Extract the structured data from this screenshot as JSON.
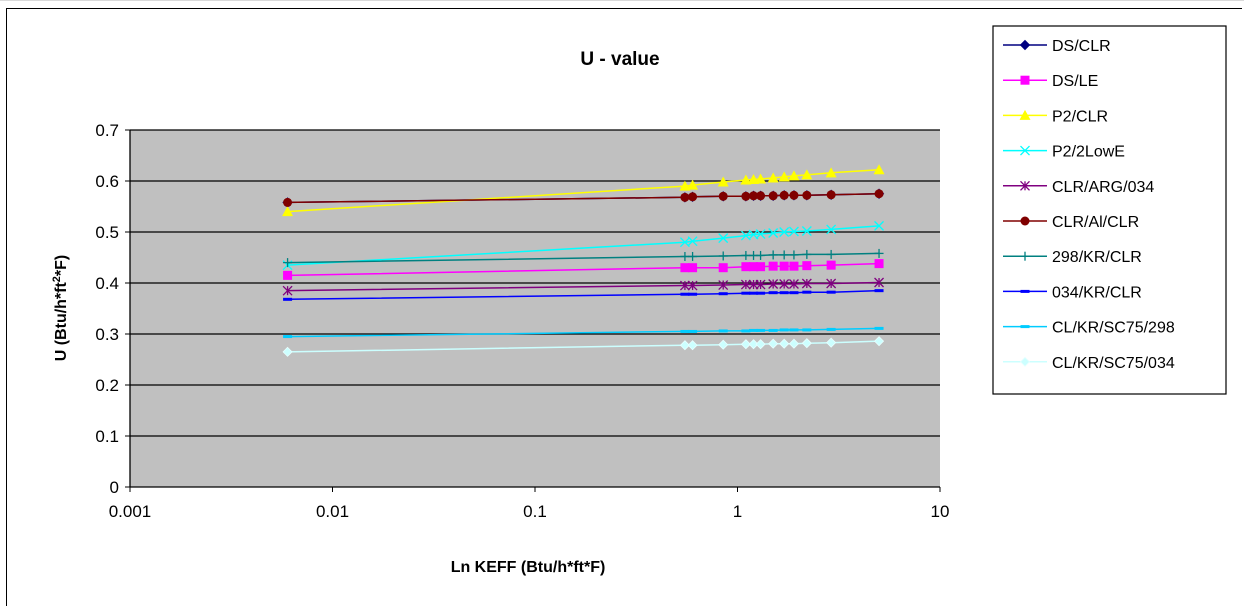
{
  "chart_data": {
    "type": "line",
    "title": "U - value",
    "xlabel": "Ln KEFF (Btu/h*ft*F)",
    "ylabel": "U (Btu/h*ft",
    "ylabel_sup": "2",
    "ylabel_tail": "*F)",
    "xscale": "log",
    "xlim": [
      0.001,
      10
    ],
    "ylim": [
      0,
      0.7
    ],
    "x_tick_labels": [
      "0.001",
      "0.01",
      "0.1",
      "1",
      "10"
    ],
    "y_tick_labels": [
      "0",
      "0.1",
      "0.2",
      "0.3",
      "0.4",
      "0.5",
      "0.6",
      "0.7"
    ],
    "grid": "horizontal",
    "plot_background": "#c0c0c0",
    "legend_position": "right",
    "x": [
      0.006,
      0.55,
      0.6,
      0.85,
      1.1,
      1.2,
      1.3,
      1.5,
      1.7,
      1.9,
      2.2,
      2.9,
      5.0
    ],
    "series": [
      {
        "name": "DS/CLR",
        "color": "#000080",
        "marker": "diamond",
        "values": [
          0.558,
          0.568,
          0.569,
          0.57,
          0.57,
          0.571,
          0.571,
          0.571,
          0.572,
          0.572,
          0.572,
          0.573,
          0.575
        ]
      },
      {
        "name": "DS/LE",
        "color": "#ff00ff",
        "marker": "square",
        "values": [
          0.415,
          0.43,
          0.43,
          0.43,
          0.432,
          0.432,
          0.432,
          0.433,
          0.433,
          0.433,
          0.434,
          0.435,
          0.438
        ]
      },
      {
        "name": "P2/CLR",
        "color": "#ffff00",
        "marker": "triangle",
        "values": [
          0.54,
          0.59,
          0.592,
          0.598,
          0.602,
          0.603,
          0.604,
          0.606,
          0.608,
          0.61,
          0.612,
          0.616,
          0.622
        ]
      },
      {
        "name": "P2/2LowE",
        "color": "#00ffff",
        "marker": "x",
        "values": [
          0.435,
          0.48,
          0.482,
          0.488,
          0.493,
          0.495,
          0.496,
          0.498,
          0.5,
          0.501,
          0.502,
          0.505,
          0.512
        ]
      },
      {
        "name": "CLR/ARG/034",
        "color": "#800080",
        "marker": "star",
        "values": [
          0.385,
          0.395,
          0.395,
          0.396,
          0.397,
          0.397,
          0.397,
          0.398,
          0.398,
          0.398,
          0.399,
          0.399,
          0.401
        ]
      },
      {
        "name": "CLR/Al/CLR",
        "color": "#800000",
        "marker": "circle",
        "values": [
          0.558,
          0.568,
          0.569,
          0.57,
          0.57,
          0.571,
          0.571,
          0.571,
          0.572,
          0.572,
          0.572,
          0.573,
          0.575
        ]
      },
      {
        "name": "298/KR/CLR",
        "color": "#008080",
        "marker": "plus",
        "values": [
          0.44,
          0.452,
          0.452,
          0.453,
          0.454,
          0.454,
          0.454,
          0.455,
          0.455,
          0.455,
          0.456,
          0.456,
          0.458
        ]
      },
      {
        "name": "034/KR/CLR",
        "color": "#0000ff",
        "marker": "dash",
        "values": [
          0.368,
          0.378,
          0.378,
          0.379,
          0.38,
          0.38,
          0.38,
          0.381,
          0.381,
          0.381,
          0.382,
          0.382,
          0.385
        ]
      },
      {
        "name": "CL/KR/SC75/298",
        "color": "#00ccff",
        "marker": "dash",
        "values": [
          0.295,
          0.305,
          0.305,
          0.306,
          0.306,
          0.307,
          0.307,
          0.307,
          0.308,
          0.308,
          0.308,
          0.309,
          0.311
        ]
      },
      {
        "name": "CL/KR/SC75/034",
        "color": "#ccffff",
        "marker": "diamond-open",
        "values": [
          0.265,
          0.278,
          0.278,
          0.279,
          0.28,
          0.28,
          0.28,
          0.281,
          0.281,
          0.281,
          0.282,
          0.283,
          0.286
        ]
      }
    ]
  }
}
